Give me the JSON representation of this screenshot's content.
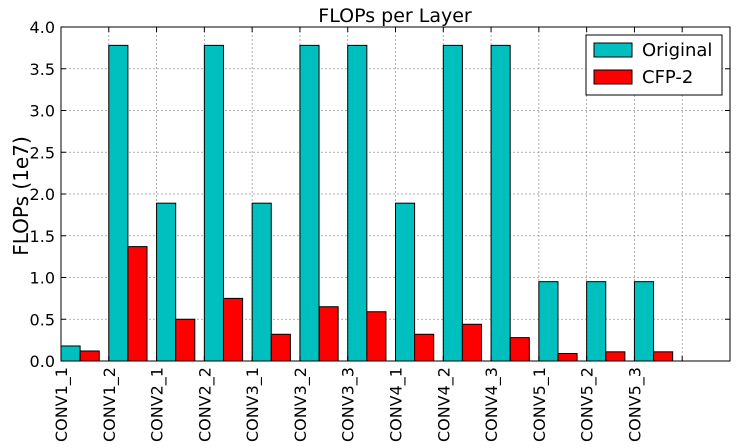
{
  "chart_data": {
    "type": "bar",
    "title": "FLOPs per Layer",
    "xlabel": "",
    "ylabel": "FLOPs (1e7)",
    "ylim": [
      0,
      4.0
    ],
    "yticks": [
      "0.0",
      "0.5",
      "1.0",
      "1.5",
      "2.0",
      "2.5",
      "3.0",
      "3.5",
      "4.0"
    ],
    "grid": true,
    "legend_position": "top-right",
    "categories": [
      "CONV1_1",
      "CONV1_2",
      "CONV2_1",
      "CONV2_2",
      "CONV3_1",
      "CONV3_2",
      "CONV3_3",
      "CONV4_1",
      "CONV4_2",
      "CONV4_3",
      "CONV5_1",
      "CONV5_2",
      "CONV5_3"
    ],
    "series": [
      {
        "name": "Original",
        "color": "#00bfbf",
        "values": [
          0.18,
          3.78,
          1.89,
          3.78,
          1.89,
          3.78,
          3.78,
          1.89,
          3.78,
          3.78,
          0.95,
          0.95,
          0.95
        ]
      },
      {
        "name": "CFP-2",
        "color": "#ff0000",
        "values": [
          0.12,
          1.37,
          0.5,
          0.75,
          0.32,
          0.65,
          0.59,
          0.32,
          0.44,
          0.28,
          0.09,
          0.11,
          0.11
        ]
      }
    ]
  }
}
